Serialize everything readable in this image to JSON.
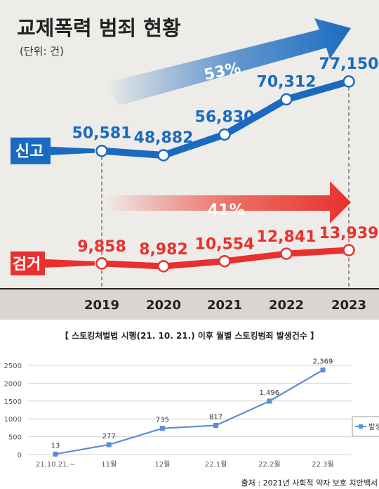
{
  "chart_data": [
    {
      "type": "line",
      "title": "교제폭력 범죄 현황",
      "subtitle": "(단위: 건)",
      "categories": [
        "2019",
        "2020",
        "2021",
        "2022",
        "2023"
      ],
      "series": [
        {
          "name": "신고",
          "values": [
            50581,
            48882,
            56830,
            70312,
            77150
          ],
          "labels": [
            "50,581",
            "48,882",
            "56,830",
            "70,312",
            "77,150"
          ],
          "growth_label": "53%",
          "color": "#1a6bbf"
        },
        {
          "name": "검거",
          "values": [
            9858,
            8982,
            10554,
            12841,
            13939
          ],
          "labels": [
            "9,858",
            "8,982",
            "10,554",
            "12,841",
            "13,939"
          ],
          "growth_label": "41%",
          "color": "#e8302e"
        }
      ]
    },
    {
      "type": "line",
      "title": "【 스토킹처벌법 시행(21. 10. 21.) 이후 월별 스토킹범죄 발생건수 】",
      "categories": [
        "21.10.21.~",
        "11월",
        "12월",
        "22.1월",
        "22.2월",
        "22.3월"
      ],
      "series": [
        {
          "name": "발생",
          "values": [
            13,
            277,
            735,
            817,
            1496,
            2369
          ],
          "labels": [
            "13",
            "277",
            "735",
            "817",
            "1,496",
            "2,369"
          ],
          "color": "#5b8ed6"
        }
      ],
      "ylim": [
        0,
        2500
      ],
      "yticks": [
        "0",
        "500",
        "1000",
        "1500",
        "2000",
        "2500"
      ],
      "grid": true,
      "legend": "right",
      "source": "출처 : 2021년 사회적 약자 보호 치안백서"
    }
  ]
}
